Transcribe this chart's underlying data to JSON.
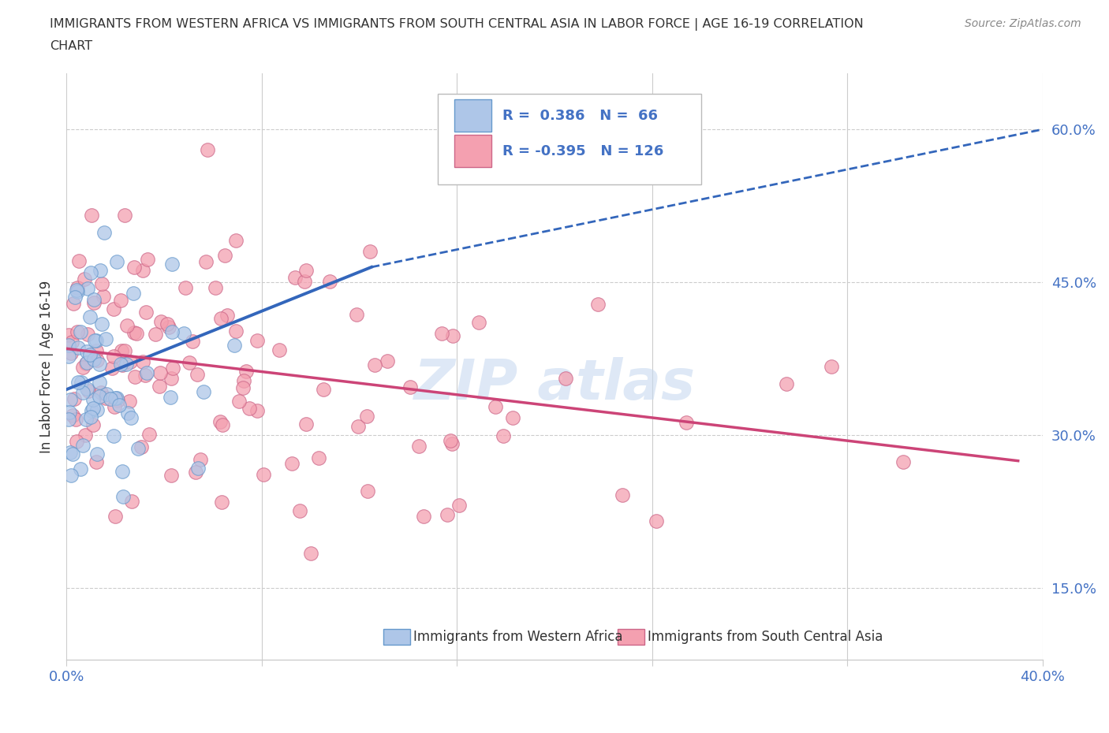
{
  "title_line1": "IMMIGRANTS FROM WESTERN AFRICA VS IMMIGRANTS FROM SOUTH CENTRAL ASIA IN LABOR FORCE | AGE 16-19 CORRELATION",
  "title_line2": "CHART",
  "source": "Source: ZipAtlas.com",
  "ylabel": "In Labor Force | Age 16-19",
  "xmin": 0.0,
  "xmax": 0.4,
  "ymin": 0.08,
  "ymax": 0.655,
  "yticks": [
    0.15,
    0.3,
    0.45,
    0.6
  ],
  "ytick_labels": [
    "15.0%",
    "30.0%",
    "45.0%",
    "60.0%"
  ],
  "blue_R": 0.386,
  "blue_N": 66,
  "pink_R": -0.395,
  "pink_N": 126,
  "blue_fill_color": "#aec6e8",
  "blue_edge_color": "#6699cc",
  "blue_line_color": "#3366bb",
  "pink_fill_color": "#f4a0b0",
  "pink_edge_color": "#cc6688",
  "pink_line_color": "#cc4477",
  "watermark_color": "#c8daf0",
  "legend_label_blue": "Immigrants from Western Africa",
  "legend_label_pink": "Immigrants from South Central Asia",
  "tick_color": "#4472c4",
  "grid_color": "#cccccc",
  "title_color": "#333333",
  "source_color": "#888888"
}
